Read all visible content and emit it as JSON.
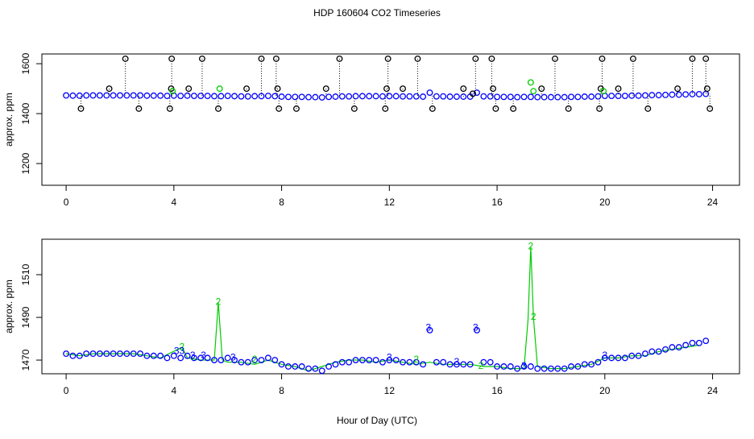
{
  "chart_data": [
    {
      "type": "scatter",
      "title": "HDP  160604  CO2 Timeseries",
      "ylabel": "approx. ppm",
      "xlim": [
        -0.9,
        25
      ],
      "ylim": [
        1113,
        1639
      ],
      "xticks": [
        0,
        4,
        8,
        12,
        16,
        20,
        24
      ],
      "yticks": [
        1200,
        1400,
        1600
      ],
      "series": [
        {
          "color": "#0000ff",
          "marker": "circle",
          "x": [
            0,
            0.25,
            0.5,
            0.75,
            1,
            1.25,
            1.5,
            1.75,
            2,
            2.25,
            2.5,
            2.75,
            3,
            3.25,
            3.5,
            3.75,
            4,
            4.25,
            4.5,
            4.75,
            5,
            5.25,
            5.5,
            5.75,
            6,
            6.25,
            6.5,
            6.75,
            7,
            7.25,
            7.5,
            7.75,
            8,
            8.25,
            8.5,
            8.75,
            9,
            9.25,
            9.5,
            9.75,
            10,
            10.25,
            10.5,
            10.75,
            11,
            11.25,
            11.5,
            11.75,
            12,
            12.25,
            12.5,
            12.75,
            13,
            13.25,
            13.5,
            13.75,
            14,
            14.25,
            14.5,
            14.75,
            15,
            15.25,
            15.5,
            15.75,
            16,
            16.25,
            16.5,
            16.75,
            17,
            17.25,
            17.5,
            17.75,
            18,
            18.25,
            18.5,
            18.75,
            19,
            19.25,
            19.5,
            19.75,
            20,
            20.25,
            20.5,
            20.75,
            21,
            21.25,
            21.5,
            21.75,
            22,
            22.25,
            22.5,
            22.75,
            23,
            23.25,
            23.5,
            23.75
          ],
          "values": [
            1473,
            1472,
            1472,
            1473,
            1473,
            1473,
            1473,
            1473,
            1473,
            1473,
            1473,
            1473,
            1472,
            1472,
            1472,
            1471,
            1472,
            1471,
            1472,
            1471,
            1471,
            1471,
            1470,
            1470,
            1471,
            1470,
            1469,
            1469,
            1470,
            1470,
            1471,
            1470,
            1468,
            1467,
            1467,
            1467,
            1466,
            1466,
            1465,
            1467,
            1468,
            1469,
            1469,
            1470,
            1470,
            1470,
            1470,
            1469,
            1470,
            1470,
            1469,
            1469,
            1469,
            1468,
            1484,
            1469,
            1469,
            1468,
            1468,
            1468,
            1468,
            1484,
            1469,
            1469,
            1467,
            1467,
            1467,
            1466,
            1467,
            1467,
            1466,
            1466,
            1466,
            1466,
            1466,
            1467,
            1467,
            1468,
            1468,
            1469,
            1471,
            1471,
            1471,
            1471,
            1472,
            1472,
            1473,
            1474,
            1474,
            1475,
            1476,
            1476,
            1477,
            1478,
            1478,
            1479
          ]
        },
        {
          "color": "#000000",
          "marker": "circle",
          "stems": true,
          "x": [
            0.55,
            1.6,
            2.2,
            2.7,
            3.85,
            3.9,
            3.92,
            4.55,
            5.05,
            5.65,
            6.7,
            7.25,
            7.8,
            7.85,
            7.9,
            8.55,
            9.65,
            10.15,
            10.7,
            11.85,
            11.9,
            11.95,
            12.5,
            13.05,
            13.6,
            14.75,
            15.1,
            15.2,
            15.8,
            15.85,
            15.95,
            16.6,
            17.65,
            18.15,
            18.65,
            19.8,
            19.85,
            19.9,
            20.5,
            21.05,
            21.6,
            22.7,
            23.25,
            23.75,
            23.8,
            23.9
          ],
          "values": [
            1420,
            1500,
            1620,
            1420,
            1420,
            1500,
            1620,
            1500,
            1620,
            1420,
            1500,
            1620,
            1620,
            1500,
            1420,
            1420,
            1500,
            1620,
            1420,
            1420,
            1500,
            1620,
            1500,
            1620,
            1420,
            1500,
            1480,
            1620,
            1620,
            1500,
            1420,
            1420,
            1500,
            1620,
            1420,
            1420,
            1500,
            1620,
            1500,
            1620,
            1420,
            1500,
            1620,
            1620,
            1500,
            1420
          ]
        },
        {
          "color": "#00cc00",
          "marker": "circle",
          "x": [
            3.95,
            5.7,
            17.25,
            17.35,
            19.95
          ],
          "values": [
            1490,
            1500,
            1525,
            1490,
            1490
          ]
        }
      ]
    },
    {
      "type": "scatter",
      "ylabel": "approx. ppm",
      "xlabel": "Hour of Day (UTC)",
      "xlim": [
        -0.9,
        25
      ],
      "ylim": [
        1463.6,
        1526.6
      ],
      "xticks": [
        0,
        4,
        8,
        12,
        16,
        20,
        24
      ],
      "yticks": [
        1470,
        1490,
        1510
      ],
      "series": [
        {
          "color": "#00cc00",
          "marker": "line",
          "x": [
            0,
            0.5,
            1,
            1.5,
            2,
            2.5,
            3,
            3.5,
            4.3,
            4.5,
            5,
            5.5,
            5.65,
            5.8,
            6,
            6.5,
            7,
            7.5,
            8,
            8.5,
            9,
            9.5,
            10,
            10.5,
            11,
            11.5,
            12,
            12.5,
            13,
            13.5,
            14,
            14.5,
            15,
            15.5,
            16,
            16.5,
            17,
            17.15,
            17.25,
            17.35,
            17.5,
            18,
            18.5,
            19,
            19.5,
            20,
            20.5,
            21,
            21.5,
            22,
            22.5,
            23,
            23.5
          ],
          "values": [
            1473,
            1472,
            1473,
            1473,
            1473,
            1473,
            1472,
            1471,
            1476,
            1471,
            1470,
            1470,
            1497,
            1470,
            1469,
            1469,
            1468,
            1470,
            1468,
            1467,
            1465,
            1467,
            1469,
            1470,
            1470,
            1469,
            1470,
            1469,
            1468,
            1469,
            1468,
            1468,
            1468,
            1467,
            1467,
            1466,
            1466,
            1489,
            1523,
            1490,
            1467,
            1466,
            1466,
            1467,
            1468,
            1471,
            1471,
            1472,
            1472,
            1474,
            1475,
            1476,
            1477
          ]
        },
        {
          "color": "#0000ff",
          "marker": "circle",
          "x": [
            0,
            0.25,
            0.5,
            0.75,
            1,
            1.25,
            1.5,
            1.75,
            2,
            2.25,
            2.5,
            2.75,
            3,
            3.25,
            3.5,
            3.75,
            4,
            4.25,
            4.5,
            4.75,
            5,
            5.25,
            5.5,
            5.75,
            6,
            6.25,
            6.5,
            6.75,
            7,
            7.25,
            7.5,
            7.75,
            8,
            8.25,
            8.5,
            8.75,
            9,
            9.25,
            9.5,
            9.75,
            10,
            10.25,
            10.5,
            10.75,
            11,
            11.25,
            11.5,
            11.75,
            12,
            12.25,
            12.5,
            12.75,
            13,
            13.25,
            13.5,
            13.75,
            14,
            14.25,
            14.5,
            14.75,
            15,
            15.25,
            15.5,
            15.75,
            16,
            16.25,
            16.5,
            16.75,
            17,
            17.25,
            17.5,
            17.75,
            18,
            18.25,
            18.5,
            18.75,
            19,
            19.25,
            19.5,
            19.75,
            20,
            20.25,
            20.5,
            20.75,
            21,
            21.25,
            21.5,
            21.75,
            22,
            22.25,
            22.5,
            22.75,
            23,
            23.25,
            23.5,
            23.75
          ],
          "values": [
            1473,
            1472,
            1472,
            1473,
            1473,
            1473,
            1473,
            1473,
            1473,
            1473,
            1473,
            1473,
            1472,
            1472,
            1472,
            1471,
            1472,
            1471,
            1472,
            1471,
            1471,
            1471,
            1470,
            1470,
            1471,
            1470,
            1469,
            1469,
            1470,
            1470,
            1471,
            1470,
            1468,
            1467,
            1467,
            1467,
            1466,
            1466,
            1465,
            1467,
            1468,
            1469,
            1469,
            1470,
            1470,
            1470,
            1470,
            1469,
            1470,
            1470,
            1469,
            1469,
            1469,
            1468,
            1484,
            1469,
            1469,
            1468,
            1468,
            1468,
            1468,
            1484,
            1469,
            1469,
            1467,
            1467,
            1467,
            1466,
            1467,
            1467,
            1466,
            1466,
            1466,
            1466,
            1466,
            1467,
            1467,
            1468,
            1468,
            1469,
            1471,
            1471,
            1471,
            1471,
            1472,
            1472,
            1473,
            1474,
            1474,
            1475,
            1476,
            1476,
            1477,
            1478,
            1478,
            1479
          ]
        },
        {
          "color": "#00cc00",
          "marker": "2",
          "x": [
            4.3,
            5.65,
            7.0,
            13.0,
            15.4,
            17.25,
            17.35
          ],
          "values": [
            1476,
            1497,
            1470,
            1470,
            1467,
            1523,
            1490
          ]
        },
        {
          "color": "#0000ff",
          "marker": "3",
          "x": [
            4.1,
            4.3,
            4.7,
            5.1,
            6.2,
            12.0,
            13.45,
            14.5,
            15.2,
            17.0,
            20.0
          ],
          "values": [
            1474,
            1474,
            1472,
            1472,
            1471,
            1471,
            1485,
            1469,
            1485,
            1467,
            1472
          ]
        }
      ]
    }
  ]
}
